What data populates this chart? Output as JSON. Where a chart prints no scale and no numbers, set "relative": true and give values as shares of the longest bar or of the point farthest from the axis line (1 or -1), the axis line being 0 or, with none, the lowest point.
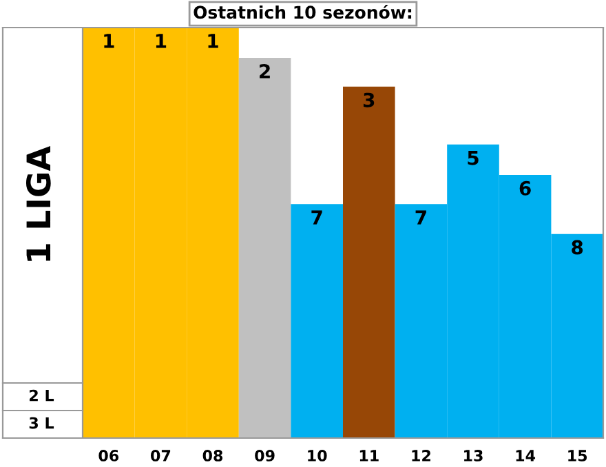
{
  "chart_data": {
    "type": "bar",
    "title": "Ostatnich 10 sezonów:",
    "ylabel": "1 LIGA",
    "relative": true,
    "categories": [
      "06",
      "07",
      "08",
      "09",
      "10",
      "11",
      "12",
      "13",
      "14",
      "15"
    ],
    "values": [
      1,
      1,
      1,
      0.926,
      0.57,
      0.856,
      0.57,
      0.715,
      0.641,
      0.497
    ],
    "colors": [
      "#ffc000",
      "#ffc000",
      "#ffc000",
      "#c0c0c0",
      "#00b0f0",
      "#974706",
      "#00b0f0",
      "#00b0f0",
      "#00b0f0",
      "#00b0f0"
    ],
    "annotations": [
      {
        "text": "1",
        "x": "06",
        "y": 1
      },
      {
        "text": "1",
        "x": "07",
        "y": 1
      },
      {
        "text": "1",
        "x": "08",
        "y": 1
      },
      {
        "text": "2",
        "x": "09",
        "y": 0.926
      },
      {
        "text": "7",
        "x": "10",
        "y": 0.57
      },
      {
        "text": "3",
        "x": "11",
        "y": 0.856
      },
      {
        "text": "7",
        "x": "12",
        "y": 0.57
      },
      {
        "text": "5",
        "x": "13",
        "y": 0.715
      },
      {
        "text": "6",
        "x": "14",
        "y": 0.641
      },
      {
        "text": "8",
        "x": "15",
        "y": 0.497
      },
      "2 L",
      "3 L"
    ]
  }
}
